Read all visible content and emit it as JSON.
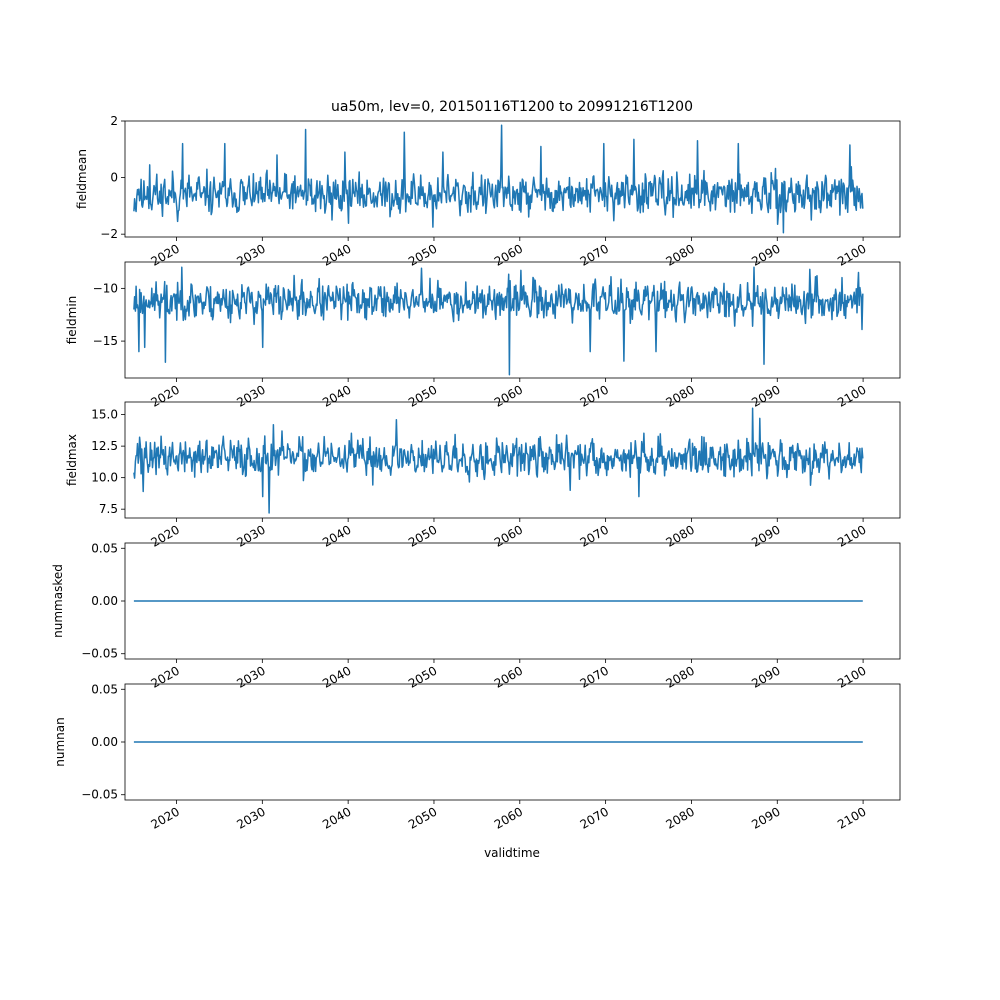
{
  "figure": {
    "title": "ua50m, lev=0, 20150116T1200 to 20991216T1200",
    "xlabel": "validtime",
    "x_ticks": [
      "2020",
      "2030",
      "2040",
      "2050",
      "2060",
      "2070",
      "2080",
      "2090",
      "2100"
    ]
  },
  "style": {
    "line_color": "#1f77b4",
    "axes_color": "#000000",
    "background": "#ffffff"
  },
  "chart_data": [
    {
      "type": "line",
      "ylabel": "fieldmean",
      "xlim": [
        2014.0,
        2104.3
      ],
      "ylim": [
        -2.1,
        2.0
      ],
      "y_ticks": [
        -2,
        0,
        2
      ],
      "y_tick_labels": [
        "−2",
        "0",
        "2"
      ],
      "x_range": [
        2015.04,
        2099.96
      ],
      "series": [
        {
          "base": -0.6,
          "amplitude": 0.55,
          "seed": 11,
          "peaks": [
            [
              2015.1,
              -0.75
            ],
            [
              2015.3,
              -1.2
            ],
            [
              2016.9,
              0.45
            ],
            [
              2020.7,
              1.2
            ],
            [
              2020.1,
              -1.55
            ],
            [
              2025.6,
              1.2
            ],
            [
              2031.7,
              0.8
            ],
            [
              2035.0,
              1.7
            ],
            [
              2038.1,
              -1.5
            ],
            [
              2039.6,
              0.9
            ],
            [
              2046.5,
              1.6
            ],
            [
              2049.9,
              -1.75
            ],
            [
              2051.0,
              0.9
            ],
            [
              2057.9,
              1.85
            ],
            [
              2062.5,
              1.1
            ],
            [
              2069.8,
              1.2
            ],
            [
              2073.3,
              1.35
            ],
            [
              2080.7,
              1.3
            ],
            [
              2085.5,
              1.2
            ],
            [
              2090.7,
              -1.95
            ],
            [
              2094.0,
              -1.5
            ],
            [
              2098.5,
              1.15
            ],
            [
              2100.0,
              -1.1
            ]
          ]
        }
      ]
    },
    {
      "type": "line",
      "ylabel": "fieldmin",
      "xlim": [
        2014.0,
        2104.3
      ],
      "ylim": [
        -18.5,
        -7.5
      ],
      "y_ticks": [
        -15,
        -10
      ],
      "y_tick_labels": [
        "−15",
        "−10"
      ],
      "x_range": [
        2015.04,
        2099.96
      ],
      "series": [
        {
          "base": -11.2,
          "amplitude": 1.4,
          "seed": 23,
          "peaks": [
            [
              2015.0,
              -12.0
            ],
            [
              2015.3,
              -9.8
            ],
            [
              2015.6,
              -16.0
            ],
            [
              2016.3,
              -15.6
            ],
            [
              2018.7,
              -17.0
            ],
            [
              2020.6,
              -8.0
            ],
            [
              2030.0,
              -15.6
            ],
            [
              2048.5,
              -8.1
            ],
            [
              2058.8,
              -18.2
            ],
            [
              2060.1,
              -8.3
            ],
            [
              2068.2,
              -16.0
            ],
            [
              2072.1,
              -16.9
            ],
            [
              2075.9,
              -16.0
            ],
            [
              2087.3,
              -8.0
            ],
            [
              2088.5,
              -17.2
            ],
            [
              2093.8,
              -8.2
            ],
            [
              2099.5,
              -8.5
            ],
            [
              2099.9,
              -13.9
            ],
            [
              2100.0,
              -10.5
            ]
          ]
        }
      ]
    },
    {
      "type": "line",
      "ylabel": "fieldmax",
      "xlim": [
        2014.0,
        2104.3
      ],
      "ylim": [
        6.8,
        16.0
      ],
      "y_ticks": [
        7.5,
        10.0,
        12.5,
        15.0
      ],
      "y_tick_labels": [
        "7.5",
        "10.0",
        "12.5",
        "15.0"
      ],
      "x_range": [
        2015.04,
        2099.96
      ],
      "series": [
        {
          "base": 11.6,
          "amplitude": 1.2,
          "seed": 37,
          "peaks": [
            [
              2015.0,
              10.4
            ],
            [
              2015.7,
              13.2
            ],
            [
              2016.1,
              8.9
            ],
            [
              2030.0,
              8.5
            ],
            [
              2030.8,
              7.2
            ],
            [
              2031.3,
              14.2
            ],
            [
              2045.6,
              14.6
            ],
            [
              2065.9,
              9.0
            ],
            [
              2073.9,
              8.5
            ],
            [
              2087.1,
              15.5
            ],
            [
              2088.0,
              14.7
            ],
            [
              2099.8,
              10.4
            ]
          ]
        }
      ]
    },
    {
      "type": "line",
      "ylabel": "nummasked",
      "xlim": [
        2014.0,
        2104.3
      ],
      "ylim": [
        -0.055,
        0.055
      ],
      "y_ticks": [
        -0.05,
        0.0,
        0.05
      ],
      "y_tick_labels": [
        "−0.05",
        "0.00",
        "0.05"
      ],
      "x": [
        2015.04,
        2099.96
      ],
      "y": [
        0,
        0
      ]
    },
    {
      "type": "line",
      "ylabel": "numnan",
      "xlim": [
        2014.0,
        2104.3
      ],
      "ylim": [
        -0.055,
        0.055
      ],
      "y_ticks": [
        -0.05,
        0.0,
        0.05
      ],
      "y_tick_labels": [
        "−0.05",
        "0.00",
        "0.05"
      ],
      "x": [
        2015.04,
        2099.96
      ],
      "y": [
        0,
        0
      ]
    }
  ]
}
